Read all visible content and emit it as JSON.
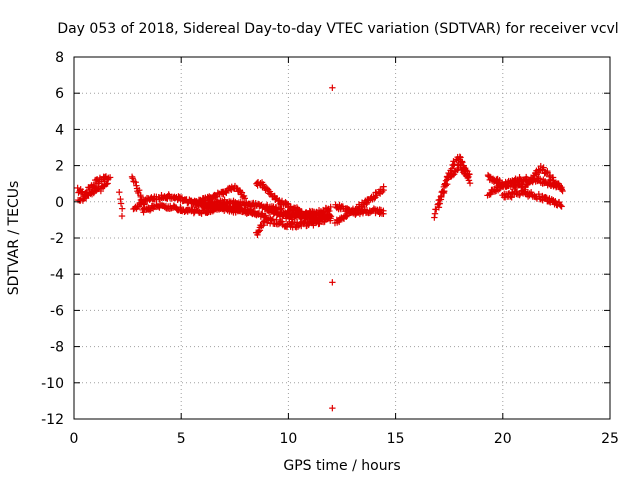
{
  "chart_data": {
    "type": "scatter",
    "title": "Day 053 of 2018, Sidereal Day-to-day VTEC variation (SDTVAR) for receiver vcvl",
    "xlabel": "GPS time / hours",
    "ylabel": "SDTVAR / TECUs",
    "xlim": [
      0,
      25
    ],
    "ylim": [
      -12,
      8
    ],
    "xticks": [
      "0",
      "5",
      "10",
      "15",
      "20",
      "25"
    ],
    "yticks": [
      "-12",
      "-10",
      "-8",
      "-6",
      "-4",
      "-2",
      "0",
      "2",
      "4",
      "6",
      "8"
    ],
    "grid": true,
    "marker": "plus",
    "color": "#e00000",
    "outliers": [
      {
        "x": 12.05,
        "y": 6.3
      },
      {
        "x": 12.05,
        "y": -4.45
      },
      {
        "x": 12.05,
        "y": -11.4
      }
    ],
    "segments": [
      {
        "x": [
          0.2,
          0.5,
          0.8,
          1.2,
          1.7
        ],
        "y": [
          0.6,
          0.4,
          0.9,
          1.2,
          1.3
        ],
        "spread": 0.35
      },
      {
        "x": [
          0.2,
          0.5,
          1.0,
          1.6
        ],
        "y": [
          0.0,
          0.3,
          0.6,
          0.9
        ],
        "spread": 0.3
      },
      {
        "x": [
          2.1,
          2.3
        ],
        "y": [
          0.5,
          -1.0
        ],
        "spread": 0.35
      },
      {
        "x": [
          2.7,
          3.0,
          3.3
        ],
        "y": [
          1.3,
          0.6,
          -0.2
        ],
        "spread": 0.3
      },
      {
        "x": [
          2.8,
          3.5,
          4.5,
          5.5,
          6.5,
          7.5,
          8.5
        ],
        "y": [
          -0.4,
          0.2,
          0.3,
          0.0,
          -0.3,
          -0.5,
          -0.6
        ],
        "spread": 0.25
      },
      {
        "x": [
          3.2,
          4.0,
          5.0,
          6.0,
          7.0,
          8.0,
          9.0
        ],
        "y": [
          -0.5,
          -0.2,
          -0.4,
          -0.6,
          -0.2,
          -0.5,
          -0.8
        ],
        "spread": 0.25
      },
      {
        "x": [
          5.5,
          6.5,
          7.5,
          8.0
        ],
        "y": [
          -0.1,
          0.3,
          0.8,
          0.2
        ],
        "spread": 0.25
      },
      {
        "x": [
          6.0,
          7.0,
          8.0,
          9.0,
          10.0,
          11.0,
          12.0
        ],
        "y": [
          -0.2,
          0.0,
          -0.1,
          -0.3,
          -0.6,
          -0.9,
          -0.8
        ],
        "spread": 0.25
      },
      {
        "x": [
          8.5,
          8.8,
          9.3,
          10.0,
          11.0,
          12.0
        ],
        "y": [
          1.1,
          0.9,
          0.3,
          -0.3,
          -0.7,
          -0.4
        ],
        "spread": 0.3
      },
      {
        "x": [
          8.5,
          9.0,
          10.0,
          11.0,
          12.0
        ],
        "y": [
          -1.8,
          -1.0,
          -1.3,
          -1.2,
          -0.9
        ],
        "spread": 0.3
      },
      {
        "x": [
          9.0,
          10.0,
          11.0,
          12.0
        ],
        "y": [
          -0.4,
          -0.9,
          -0.6,
          -0.8
        ],
        "spread": 0.25
      },
      {
        "x": [
          12.2,
          13.0,
          14.0,
          14.5
        ],
        "y": [
          -1.1,
          -0.5,
          0.3,
          0.8
        ],
        "spread": 0.25
      },
      {
        "x": [
          12.2,
          13.0,
          14.0,
          14.5
        ],
        "y": [
          -0.2,
          -0.6,
          -0.5,
          -0.6
        ],
        "spread": 0.25
      },
      {
        "x": [
          16.8,
          17.2,
          17.6,
          18.0,
          18.5
        ],
        "y": [
          -0.8,
          0.5,
          2.0,
          2.5,
          1.3
        ],
        "spread": 0.35
      },
      {
        "x": [
          17.0,
          17.5,
          18.0,
          18.5
        ],
        "y": [
          0.0,
          1.3,
          2.0,
          1.0
        ],
        "spread": 0.3
      },
      {
        "x": [
          19.3,
          20.0,
          21.0,
          22.0,
          22.8
        ],
        "y": [
          0.4,
          0.9,
          1.3,
          1.1,
          0.8
        ],
        "spread": 0.3
      },
      {
        "x": [
          19.3,
          20.0,
          21.0,
          21.8,
          22.8
        ],
        "y": [
          1.4,
          1.0,
          0.8,
          1.9,
          0.6
        ],
        "spread": 0.3
      },
      {
        "x": [
          20.0,
          21.0,
          22.0,
          22.8
        ],
        "y": [
          0.3,
          0.5,
          0.2,
          -0.2
        ],
        "spread": 0.3
      }
    ]
  }
}
